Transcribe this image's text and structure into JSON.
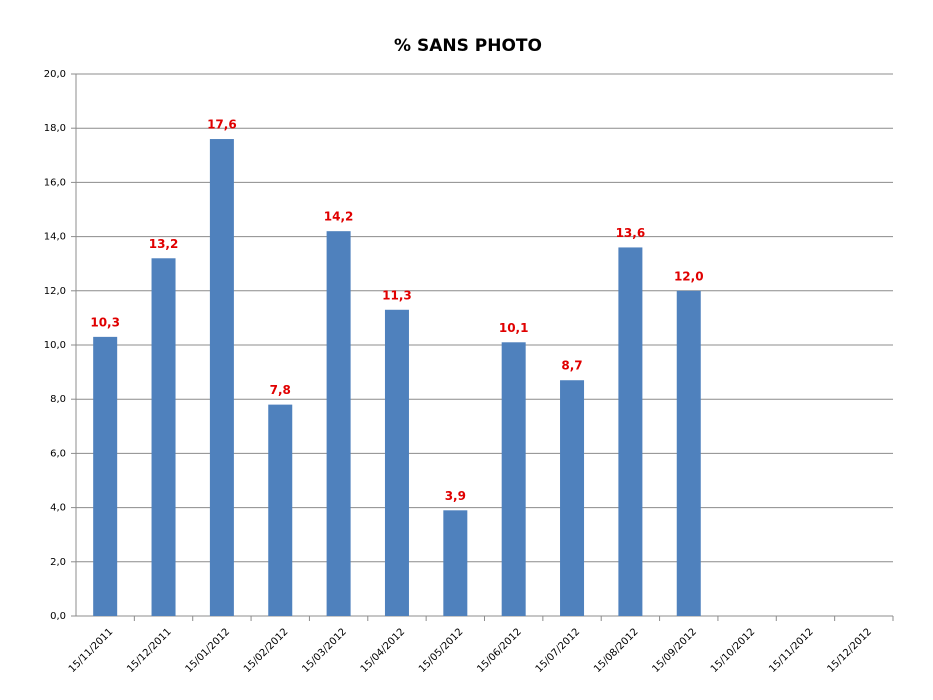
{
  "chart_data": {
    "type": "bar",
    "title": "% SANS PHOTO",
    "categories": [
      "15/11/2011",
      "15/12/2011",
      "15/01/2012",
      "15/02/2012",
      "15/03/2012",
      "15/04/2012",
      "15/05/2012",
      "15/06/2012",
      "15/07/2012",
      "15/08/2012",
      "15/09/2012",
      "15/10/2012",
      "15/11/2012",
      "15/12/2012"
    ],
    "values": [
      10.3,
      13.2,
      17.6,
      7.8,
      14.2,
      11.3,
      3.9,
      10.1,
      8.7,
      13.6,
      12.0,
      null,
      null,
      null
    ],
    "value_labels": [
      "10,3",
      "13,2",
      "17,6",
      "7,8",
      "14,2",
      "11,3",
      "3,9",
      "10,1",
      "8,7",
      "13,6",
      "12,0",
      null,
      null,
      null
    ],
    "color": "#4f81bd",
    "label_color": "#e00000",
    "ylim": [
      0,
      20
    ],
    "yticks": [
      {
        "value": 0,
        "label": "0,0"
      },
      {
        "value": 2,
        "label": "2,0"
      },
      {
        "value": 4,
        "label": "4,0"
      },
      {
        "value": 6,
        "label": "6,0"
      },
      {
        "value": 8,
        "label": "8,0"
      },
      {
        "value": 10,
        "label": "10,0"
      },
      {
        "value": 12,
        "label": "12,0"
      },
      {
        "value": 14,
        "label": "14,0"
      },
      {
        "value": 16,
        "label": "16,0"
      },
      {
        "value": 18,
        "label": "18,0"
      },
      {
        "value": 20,
        "label": "20,0"
      }
    ],
    "grid": true
  }
}
